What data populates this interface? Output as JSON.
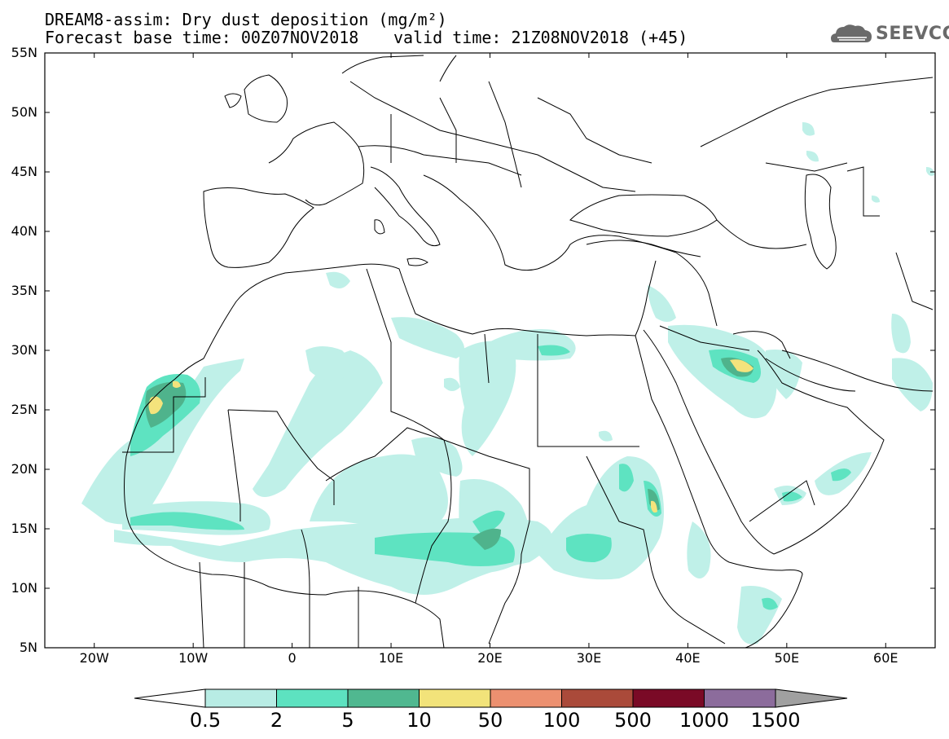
{
  "title_line1": "DREAM8-assim: Dry dust deposition (mg/m²)",
  "title_line2": "Forecast base time: 00Z07NOV2018",
  "valid_time": "valid time: 21Z08NOV2018 (+45)",
  "logo_text": "SEEVCCC",
  "map": {
    "lon_range": [
      -25,
      65
    ],
    "lat_range": [
      5,
      55
    ],
    "lat_ticks": [
      "55N",
      "50N",
      "45N",
      "40N",
      "35N",
      "30N",
      "25N",
      "20N",
      "15N",
      "10N",
      "5N"
    ],
    "lon_ticks": [
      "20W",
      "10W",
      "0",
      "10E",
      "20E",
      "30E",
      "40E",
      "50E",
      "60E"
    ]
  },
  "colorbar": {
    "labels": [
      "0.5",
      "2",
      "5",
      "10",
      "50",
      "100",
      "500",
      "1000",
      "1500"
    ],
    "colors": [
      "#b8ece4",
      "#5de2c0",
      "#50b890",
      "#f2e37a",
      "#ec9070",
      "#aa4a3a",
      "#7a0a26",
      "#8c6c9c",
      "#a0a0a0"
    ]
  },
  "dust_colors": {
    "light": "#bff0e8",
    "medium": "#5ee3c1",
    "dark": "#4fb38c",
    "yellow": "#f4e37c"
  }
}
